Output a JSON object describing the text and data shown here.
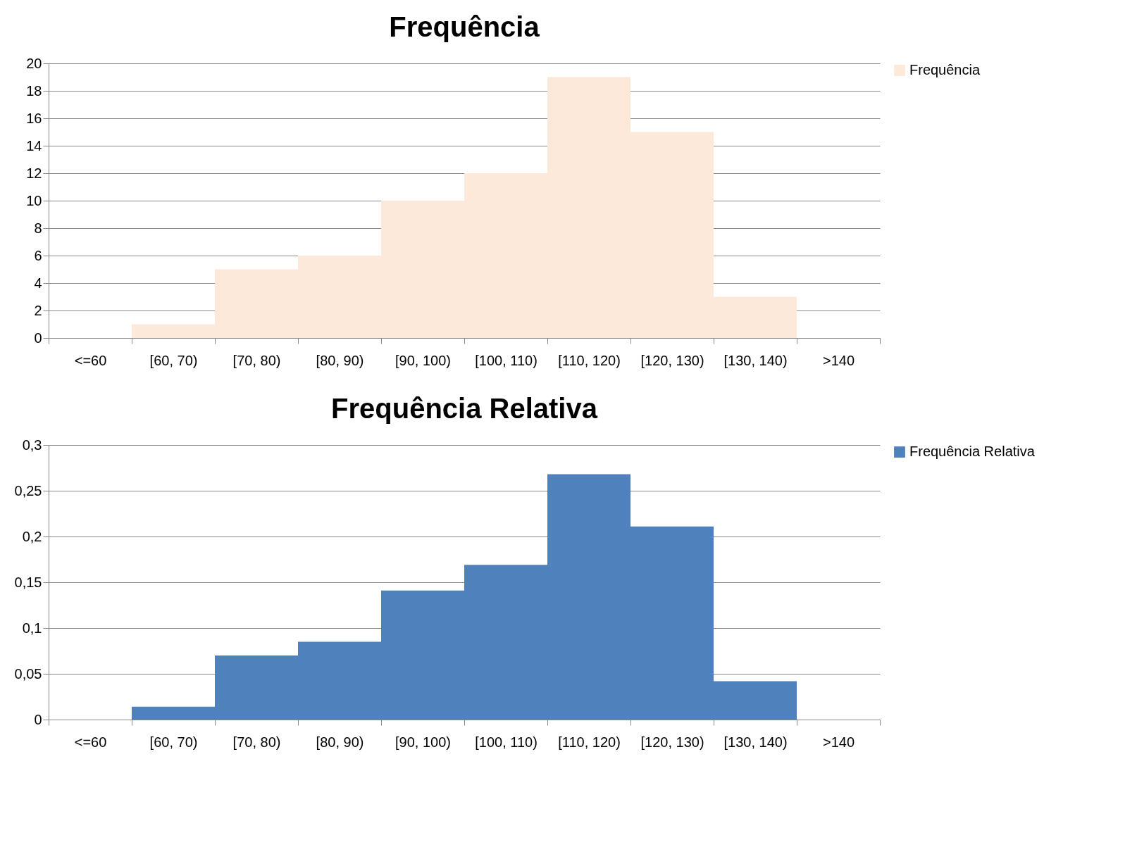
{
  "chart_data": [
    {
      "type": "bar",
      "title": "Frequência",
      "categories": [
        "<=60",
        "[60, 70)",
        "[70, 80)",
        "[80, 90)",
        "[90, 100)",
        "[100, 110)",
        "[110, 120)",
        "[120, 130)",
        "[130, 140)",
        ">140"
      ],
      "series": [
        {
          "name": "Frequência",
          "color": "#fde9d9",
          "values": [
            0,
            1,
            5,
            6,
            10,
            12,
            19,
            15,
            3,
            0
          ]
        }
      ],
      "ylim": [
        0,
        20
      ],
      "yticks": [
        0,
        2,
        4,
        6,
        8,
        10,
        12,
        14,
        16,
        18,
        20
      ],
      "grid": "y",
      "legend": "right"
    },
    {
      "type": "bar",
      "title": "Frequência Relativa",
      "categories": [
        "<=60",
        "[60, 70)",
        "[70, 80)",
        "[80, 90)",
        "[90, 100)",
        "[100, 110)",
        "[110, 120)",
        "[120, 130)",
        "[130, 140)",
        ">140"
      ],
      "series": [
        {
          "name": "Frequência Relativa",
          "color": "#4f81bd",
          "values": [
            0,
            0.014,
            0.07,
            0.085,
            0.141,
            0.169,
            0.268,
            0.211,
            0.042,
            0
          ]
        }
      ],
      "ylim": [
        0,
        0.3
      ],
      "yticks": [
        0,
        {
          "value": 0.05,
          "label": "0,05"
        },
        {
          "value": 0.1,
          "label": "0,1"
        },
        {
          "value": 0.15,
          "label": "0,15"
        },
        {
          "value": 0.2,
          "label": "0,2"
        },
        {
          "value": 0.25,
          "label": "0,25"
        },
        {
          "value": 0.3,
          "label": "0,3"
        }
      ],
      "grid": "y",
      "legend": "right"
    }
  ]
}
